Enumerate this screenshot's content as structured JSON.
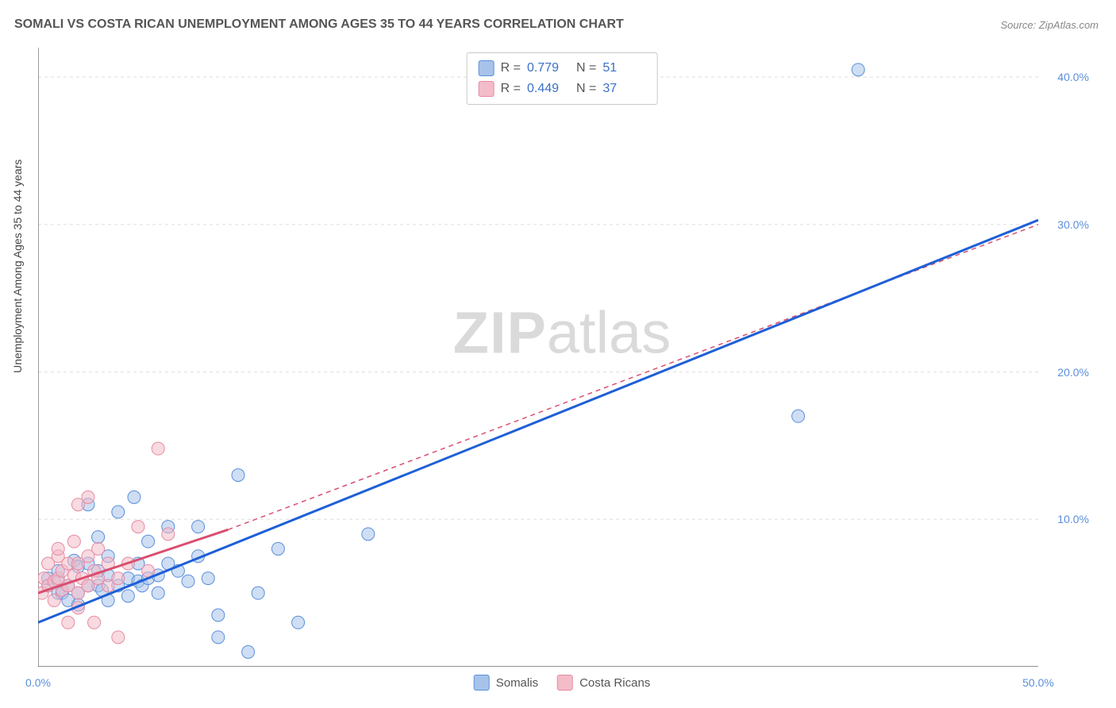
{
  "title": "SOMALI VS COSTA RICAN UNEMPLOYMENT AMONG AGES 35 TO 44 YEARS CORRELATION CHART",
  "source": "Source: ZipAtlas.com",
  "ylabel": "Unemployment Among Ages 35 to 44 years",
  "watermark": {
    "part1": "ZIP",
    "part2": "atlas"
  },
  "chart": {
    "type": "scatter",
    "background_color": "#ffffff",
    "grid_color": "#dddddd",
    "axis_color": "#555555",
    "tick_label_color": "#5a8fdc",
    "xlim": [
      0,
      50
    ],
    "ylim": [
      0,
      42
    ],
    "xticks": [
      0,
      10,
      20,
      30,
      40,
      50
    ],
    "yticks": [
      10,
      20,
      30,
      40
    ],
    "xtick_labels": [
      "0.0%",
      "",
      "",
      "",
      "",
      "50.0%"
    ],
    "ytick_labels": [
      "10.0%",
      "20.0%",
      "30.0%",
      "40.0%"
    ],
    "marker_radius": 8,
    "marker_opacity": 0.55,
    "series": [
      {
        "name": "Somalis",
        "color_fill": "#a7c3ea",
        "color_stroke": "#5a8fdc",
        "r": 0.779,
        "n": 51,
        "trend": {
          "x1": 0,
          "y1": 3.0,
          "x2": 50,
          "y2": 30.3,
          "color": "#1e5fd6",
          "width": 3,
          "dash": "none",
          "extrapolate": false
        },
        "points": [
          [
            0.5,
            5.5
          ],
          [
            0.5,
            6.0
          ],
          [
            1.0,
            5.0
          ],
          [
            1.0,
            6.5
          ],
          [
            1.0,
            5.8
          ],
          [
            1.2,
            5.0
          ],
          [
            1.5,
            4.5
          ],
          [
            1.5,
            5.5
          ],
          [
            1.8,
            7.2
          ],
          [
            2.0,
            6.8
          ],
          [
            2.0,
            5.0
          ],
          [
            2.0,
            4.2
          ],
          [
            2.5,
            5.5
          ],
          [
            2.5,
            7.0
          ],
          [
            2.5,
            11.0
          ],
          [
            3.0,
            5.5
          ],
          [
            3.0,
            6.5
          ],
          [
            3.0,
            8.8
          ],
          [
            3.2,
            5.2
          ],
          [
            3.5,
            4.5
          ],
          [
            3.5,
            6.2
          ],
          [
            3.5,
            7.5
          ],
          [
            4.0,
            5.5
          ],
          [
            4.0,
            10.5
          ],
          [
            4.5,
            6.0
          ],
          [
            4.5,
            4.8
          ],
          [
            4.8,
            11.5
          ],
          [
            5.0,
            5.8
          ],
          [
            5.0,
            7.0
          ],
          [
            5.2,
            5.5
          ],
          [
            5.5,
            6.0
          ],
          [
            5.5,
            8.5
          ],
          [
            6.0,
            6.2
          ],
          [
            6.0,
            5.0
          ],
          [
            6.5,
            7.0
          ],
          [
            6.5,
            9.5
          ],
          [
            7.0,
            6.5
          ],
          [
            7.5,
            5.8
          ],
          [
            8.0,
            7.5
          ],
          [
            8.0,
            9.5
          ],
          [
            8.5,
            6.0
          ],
          [
            9.0,
            2.0
          ],
          [
            9.0,
            3.5
          ],
          [
            10.0,
            13.0
          ],
          [
            10.5,
            1.0
          ],
          [
            11.0,
            5.0
          ],
          [
            12.0,
            8.0
          ],
          [
            13.0,
            3.0
          ],
          [
            16.5,
            9.0
          ],
          [
            38.0,
            17.0
          ],
          [
            41.0,
            40.5
          ]
        ]
      },
      {
        "name": "Costa Ricans",
        "color_fill": "#f3bcc8",
        "color_stroke": "#e78aa2",
        "r": 0.449,
        "n": 37,
        "trend": {
          "x1": 0,
          "y1": 5.0,
          "x2": 9.5,
          "y2": 9.3,
          "color": "#d94f6f",
          "width": 3,
          "dash": "none",
          "extrapolate": true,
          "extrap_x2": 50,
          "extrap_y2": 30.0,
          "extrap_dash": "6,5",
          "extrap_width": 1.5
        },
        "points": [
          [
            0.2,
            5.0
          ],
          [
            0.3,
            6.0
          ],
          [
            0.5,
            5.5
          ],
          [
            0.5,
            7.0
          ],
          [
            0.8,
            5.8
          ],
          [
            0.8,
            4.5
          ],
          [
            1.0,
            6.0
          ],
          [
            1.0,
            7.5
          ],
          [
            1.0,
            8.0
          ],
          [
            1.2,
            6.5
          ],
          [
            1.2,
            5.2
          ],
          [
            1.5,
            3.0
          ],
          [
            1.5,
            5.5
          ],
          [
            1.5,
            7.0
          ],
          [
            1.8,
            6.2
          ],
          [
            1.8,
            8.5
          ],
          [
            2.0,
            7.0
          ],
          [
            2.0,
            5.0
          ],
          [
            2.0,
            4.0
          ],
          [
            2.0,
            11.0
          ],
          [
            2.2,
            6.0
          ],
          [
            2.5,
            5.5
          ],
          [
            2.5,
            7.5
          ],
          [
            2.5,
            11.5
          ],
          [
            2.8,
            6.5
          ],
          [
            2.8,
            3.0
          ],
          [
            3.0,
            6.0
          ],
          [
            3.0,
            8.0
          ],
          [
            3.5,
            5.5
          ],
          [
            3.5,
            7.0
          ],
          [
            4.0,
            6.0
          ],
          [
            4.0,
            2.0
          ],
          [
            4.5,
            7.0
          ],
          [
            5.0,
            9.5
          ],
          [
            5.5,
            6.5
          ],
          [
            6.0,
            14.8
          ],
          [
            6.5,
            9.0
          ]
        ]
      }
    ]
  }
}
